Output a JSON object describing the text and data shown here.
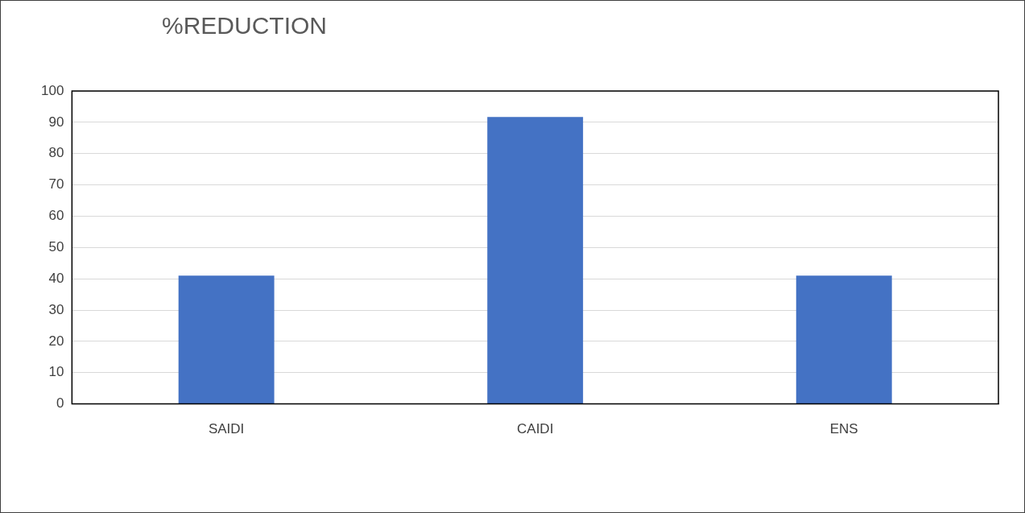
{
  "chart_data": {
    "type": "bar",
    "title": "%REDUCTION",
    "categories": [
      "SAIDI",
      "CAIDI",
      "ENS"
    ],
    "values": [
      41,
      91.7,
      41
    ],
    "color": "#4472c4",
    "ylim": [
      0,
      100
    ],
    "yticks": [
      0,
      10,
      20,
      30,
      40,
      50,
      60,
      70,
      80,
      90,
      100
    ],
    "grid": "y"
  }
}
